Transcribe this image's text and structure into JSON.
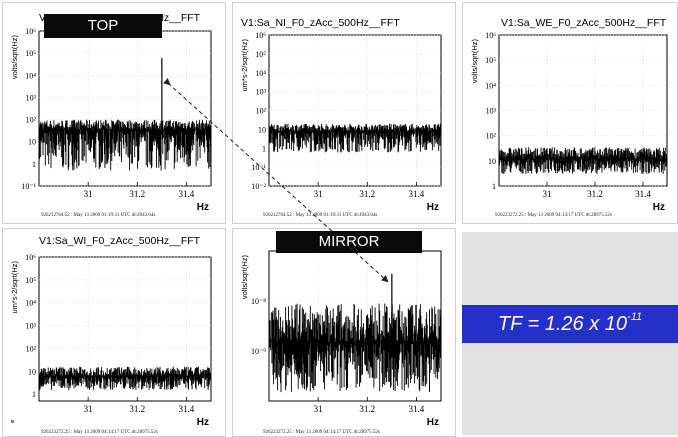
{
  "banners": {
    "top": "TOP",
    "mirror": "MIRROR"
  },
  "tf": {
    "prefix": "TF = 1.26 x 10",
    "exponent": "-11"
  },
  "chart_data": [
    {
      "id": "p1",
      "type": "line",
      "title": "V1:Sa_TF_F0_zAcc_500Hz__FFT",
      "ylabel": "volts/sqrt(Hz)",
      "xlabel": "Hz",
      "xlim": [
        30.8,
        31.5
      ],
      "ylim": [
        0.1,
        1000000
      ],
      "log_y": true,
      "x_ticks": [
        {
          "v": 31,
          "t": "31"
        },
        {
          "v": 31.2,
          "t": "31.2"
        },
        {
          "v": 31.4,
          "t": "31.4"
        }
      ],
      "y_ticks": [
        {
          "v": 0.1,
          "t": "10⁻¹"
        },
        {
          "v": 1,
          "t": "1"
        },
        {
          "v": 10,
          "t": "10"
        },
        {
          "v": 100,
          "t": "10²"
        },
        {
          "v": 1000,
          "t": "10³"
        },
        {
          "v": 10000,
          "t": "10⁴"
        },
        {
          "v": 100000,
          "t": "10⁵"
        },
        {
          "v": 1000000,
          "t": "10⁶"
        }
      ],
      "noise": {
        "base": 35,
        "low": 0.5,
        "high": 100
      },
      "peaks": [
        {
          "x": 31.3,
          "y": 60000
        }
      ],
      "footer": "926212764.52 : May 13 2009 01:19:31 UTC dt:4943.64s"
    },
    {
      "id": "p2",
      "type": "line",
      "title": "V1:Sa_NI_F0_zAcc_500Hz__FFT",
      "ylabel": "um*s-2/sqrt(Hz)",
      "xlabel": "Hz",
      "xlim": [
        30.8,
        31.5
      ],
      "ylim": [
        0.01,
        1000000
      ],
      "log_y": true,
      "x_ticks": [
        {
          "v": 31,
          "t": "31"
        },
        {
          "v": 31.2,
          "t": "31.2"
        },
        {
          "v": 31.4,
          "t": "31.4"
        }
      ],
      "y_ticks": [
        {
          "v": 0.01,
          "t": "10⁻²"
        },
        {
          "v": 0.1,
          "t": "10⁻¹"
        },
        {
          "v": 1,
          "t": "1"
        },
        {
          "v": 10,
          "t": "10"
        },
        {
          "v": 100,
          "t": "10²"
        },
        {
          "v": 1000,
          "t": "10³"
        },
        {
          "v": 10000,
          "t": "10⁴"
        },
        {
          "v": 100000,
          "t": "10⁵"
        },
        {
          "v": 1000000,
          "t": "10⁶"
        }
      ],
      "noise": {
        "base": 8,
        "low": 0.6,
        "high": 20
      },
      "peaks": [],
      "footer": "926212764.52 : May 13 2009 01:19:31 UTC dt:4943.64s"
    },
    {
      "id": "p3",
      "type": "line",
      "title": "V1:Sa_WE_F0_zAcc_500Hz__FFT",
      "ylabel": "volts/sqrt(Hz)",
      "xlabel": "Hz",
      "xlim": [
        30.8,
        31.5
      ],
      "ylim": [
        1,
        1000000
      ],
      "log_y": true,
      "x_ticks": [
        {
          "v": 31,
          "t": "31"
        },
        {
          "v": 31.2,
          "t": "31.2"
        },
        {
          "v": 31.4,
          "t": "31.4"
        }
      ],
      "y_ticks": [
        {
          "v": 1,
          "t": "1"
        },
        {
          "v": 10,
          "t": "10"
        },
        {
          "v": 100,
          "t": "10²"
        },
        {
          "v": 1000,
          "t": "10³"
        },
        {
          "v": 10000,
          "t": "10⁴"
        },
        {
          "v": 100000,
          "t": "10⁵"
        },
        {
          "v": 1000000,
          "t": "10⁶"
        }
      ],
      "noise": {
        "base": 12,
        "low": 3,
        "high": 35
      },
      "peaks": [],
      "footer": "926223272.25 : May 13 2009 04:14:17 UTC dt:28975.52s"
    },
    {
      "id": "p4",
      "type": "line",
      "title": "V1:Sa_WI_F0_zAcc_500Hz__FFT",
      "ylabel": "um*s-2/sqrt(Hz)",
      "xlabel": "Hz",
      "xlim": [
        30.8,
        31.5
      ],
      "ylim": [
        0.5,
        1000000
      ],
      "log_y": true,
      "x_ticks": [
        {
          "v": 31,
          "t": "31"
        },
        {
          "v": 31.2,
          "t": "31.2"
        },
        {
          "v": 31.4,
          "t": "31.4"
        }
      ],
      "y_ticks": [
        {
          "v": 1,
          "t": "1"
        },
        {
          "v": 10,
          "t": "10"
        },
        {
          "v": 100,
          "t": "10²"
        },
        {
          "v": 1000,
          "t": "10³"
        },
        {
          "v": 10000,
          "t": "10⁴"
        },
        {
          "v": 100000,
          "t": "10⁵"
        },
        {
          "v": 1000000,
          "t": "10⁶"
        }
      ],
      "noise": {
        "base": 6,
        "low": 1.5,
        "high": 16
      },
      "peaks": [],
      "footer": "926223272.25 : May 13 2009 04:14:17 UTC dt:28975.52s"
    },
    {
      "id": "p5",
      "type": "line",
      "title": "",
      "ylabel": "volts/sqrt(Hz)",
      "xlabel": "Hz",
      "xlim": [
        30.8,
        31.5
      ],
      "ylim": [
        1e-10,
        1e-07
      ],
      "log_y": true,
      "x_ticks": [
        {
          "v": 31,
          "t": "31"
        },
        {
          "v": 31.2,
          "t": "31.2"
        },
        {
          "v": 31.4,
          "t": "31.4"
        }
      ],
      "y_ticks": [
        {
          "v": 1e-09,
          "t": "10⁻⁹"
        },
        {
          "v": 1e-08,
          "t": "10⁻⁸"
        }
      ],
      "noise": {
        "base": 1.5e-09,
        "low": 1.5e-10,
        "high": 9e-09
      },
      "peaks": [
        {
          "x": 31.3,
          "y": 3.5e-08
        }
      ],
      "footer": "926223272.25 : May 13 2009 04:14:17 UTC dt:28975.52s"
    }
  ]
}
